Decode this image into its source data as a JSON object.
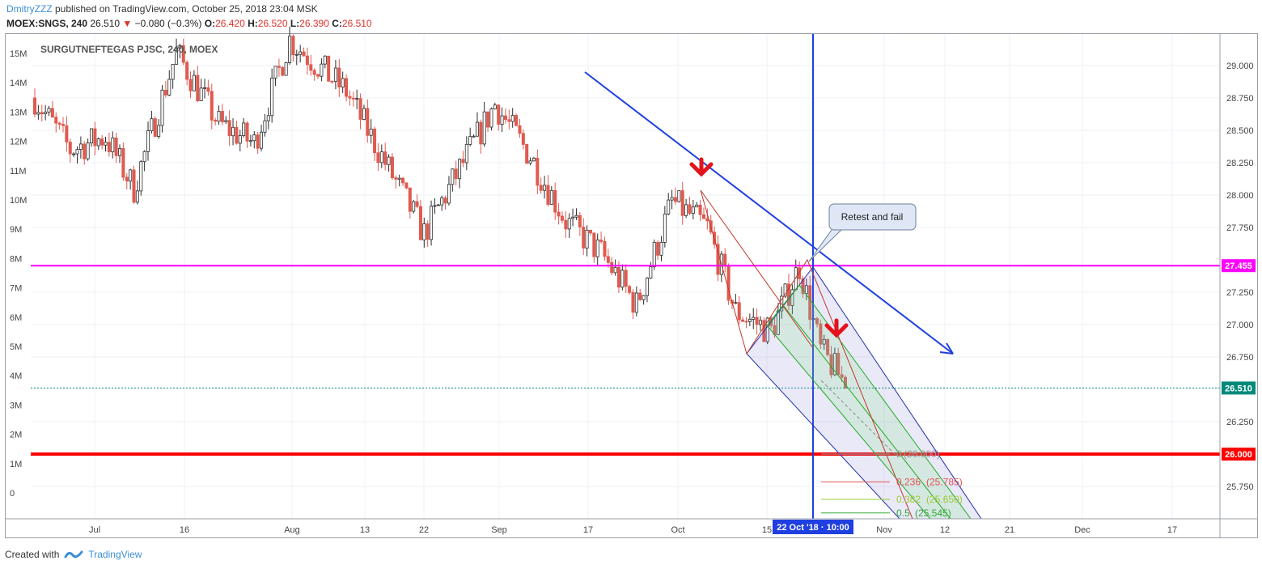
{
  "header": {
    "author": "DmitryZZZ",
    "published_text": "published on TradingView.com, October 25, 2018 23:04 MSK",
    "symbol_line": "MOEX:SNGS, 240",
    "last": "26.510",
    "change": "−0.080 (−0.3%)",
    "open_label": "O:",
    "open": "26.420",
    "high_label": "H:",
    "high": "26.520",
    "low_label": "L:",
    "low": "26.390",
    "close_label": "C:",
    "close": "26.510"
  },
  "chart_data": {
    "type": "candlestick",
    "symbol_label": "SURGUTNEFTEGAS PJSC, 240, MOEX",
    "x_ticks": [
      "Jul",
      "16",
      "Aug",
      "13",
      "22",
      "Sep",
      "17",
      "Oct",
      "15",
      "Nov",
      "12",
      "21",
      "Dec",
      "17"
    ],
    "y_ticks": [
      "29.000",
      "28.750",
      "28.500",
      "28.250",
      "28.000",
      "27.750",
      "27.250",
      "27.000",
      "26.750",
      "26.250",
      "25.750"
    ],
    "y_range": [
      25.6,
      29.35
    ],
    "volume_ticks": [
      "15M",
      "14M",
      "13M",
      "12M",
      "11M",
      "10M",
      "9M",
      "8M",
      "7M",
      "6M",
      "5M",
      "4M",
      "3M",
      "2M",
      "1M",
      "0"
    ],
    "horizontal_levels": [
      {
        "price": 27.455,
        "label": "27.455",
        "color": "#ff00ff"
      },
      {
        "price": 26.51,
        "label": "26.510",
        "color": "#00897b"
      },
      {
        "price": 26.0,
        "label": "26.000",
        "color": "#ff0000"
      }
    ],
    "crosshair_label": "22 Oct '18 · 10:00",
    "annotation": "Retest and fail",
    "fib_levels": [
      {
        "ratio": "0",
        "price": "26.000",
        "color": "#999999"
      },
      {
        "ratio": "0.236",
        "price": "25.785",
        "color": "#e05555"
      },
      {
        "ratio": "0.382",
        "price": "25.650",
        "color": "#99cc33"
      },
      {
        "ratio": "0.5",
        "price": "25.545",
        "color": "#33aa33"
      }
    ],
    "candles_start_price": 28.75,
    "candles_end_price": 26.51,
    "candle_count": 230
  },
  "footer": {
    "created_with": "Created with",
    "brand": "TradingView"
  }
}
